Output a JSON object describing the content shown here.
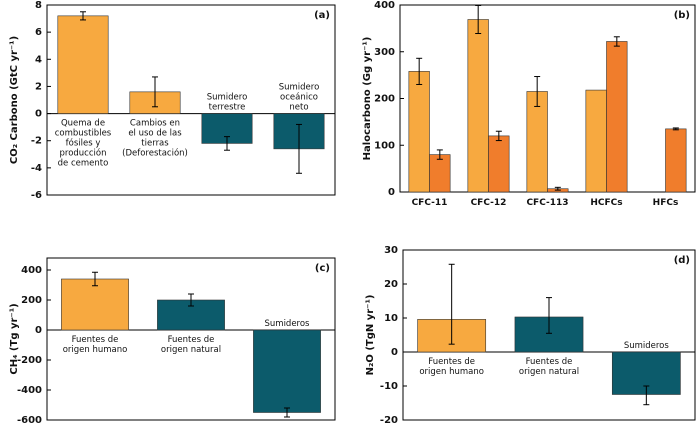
{
  "chart_data": [
    {
      "type": "bar",
      "panel_label": "(a)",
      "y_label": "CO₂ Carbono (GtC yr⁻¹)",
      "categories": [
        [
          "Quema de",
          "combustibles",
          "fósiles y",
          "producción",
          "de cemento"
        ],
        [
          "Cambios en",
          "el uso de las",
          "tierras",
          "(Deforestación)"
        ],
        [
          "Sumidero",
          "terrestre"
        ],
        [
          "Sumidero",
          "oceánico",
          "neto"
        ]
      ],
      "series": [
        {
          "colors": [
            "#f7a940",
            "#f7a940",
            "#0c5b6b",
            "#0c5b6b"
          ],
          "values": [
            7.2,
            1.6,
            -2.2,
            -2.6
          ],
          "errors": [
            0.3,
            1.1,
            0.5,
            1.8
          ]
        }
      ],
      "ylim": [
        -6,
        8
      ],
      "yticks": [
        -6,
        -4,
        -2,
        0,
        2,
        4,
        6,
        8
      ]
    },
    {
      "type": "bar",
      "panel_label": "(b)",
      "y_label": "Halocarbono (Gg yr⁻¹)",
      "categories": [
        [
          "CFC-11"
        ],
        [
          "CFC-12"
        ],
        [
          "CFC-113"
        ],
        [
          "HCFCs"
        ],
        [
          "HFCs"
        ]
      ],
      "series": [
        {
          "color": "#f7a940",
          "values": [
            258,
            369,
            215,
            218,
            null
          ],
          "errors": [
            28,
            30,
            32,
            null,
            null
          ]
        },
        {
          "color": "#f07d2c",
          "values": [
            80,
            120,
            7,
            322,
            135
          ],
          "errors": [
            10,
            10,
            3,
            10,
            2
          ]
        }
      ],
      "ylim": [
        0,
        400
      ],
      "yticks": [
        0,
        100,
        200,
        300,
        400
      ]
    },
    {
      "type": "bar",
      "panel_label": "(c)",
      "y_label": "CH₄ (Tg yr⁻¹)",
      "categories": [
        [
          "Fuentes de",
          "origen humano"
        ],
        [
          "Fuentes de",
          "origen natural"
        ],
        [
          "Sumideros"
        ]
      ],
      "series": [
        {
          "colors": [
            "#f7a940",
            "#0c5b6b",
            "#0c5b6b"
          ],
          "values": [
            340,
            200,
            -550
          ],
          "errors": [
            45,
            40,
            30
          ]
        }
      ],
      "ylim": [
        -600,
        480
      ],
      "yticks": [
        -600,
        -400,
        -200,
        0,
        200,
        400
      ]
    },
    {
      "type": "bar",
      "panel_label": "(d)",
      "y_label": "N₂O (TgN yr⁻¹)",
      "categories": [
        [
          "Fuentes de",
          "origen humano"
        ],
        [
          "Fuentes de",
          "origen natural"
        ],
        [
          "Sumideros"
        ]
      ],
      "series": [
        {
          "colors": [
            "#f7a940",
            "#0c5b6b",
            "#0c5b6b"
          ],
          "values": [
            9.6,
            10.3,
            -12.5
          ],
          "error_low": [
            7.3,
            4.8,
            3
          ],
          "error_high": [
            16.2,
            5.7,
            2.5
          ]
        }
      ],
      "ylim": [
        -20,
        30
      ],
      "yticks": [
        -20,
        -10,
        0,
        10,
        20,
        30
      ]
    }
  ]
}
